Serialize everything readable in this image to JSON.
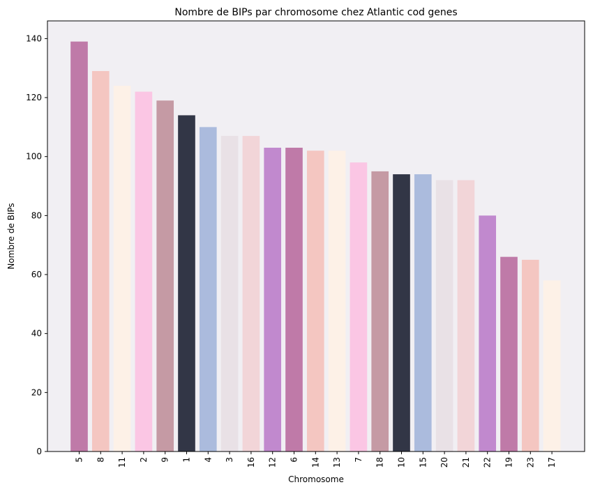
{
  "chart_data": {
    "type": "bar",
    "title": "Nombre de BIPs par chromosome chez Atlantic cod genes",
    "xlabel": "Chromosome",
    "ylabel": "Nombre de BIPs",
    "categories": [
      "5",
      "8",
      "11",
      "2",
      "9",
      "1",
      "4",
      "3",
      "16",
      "12",
      "6",
      "14",
      "13",
      "7",
      "18",
      "10",
      "15",
      "20",
      "21",
      "22",
      "19",
      "23",
      "17"
    ],
    "values": [
      139,
      129,
      124,
      122,
      119,
      114,
      110,
      107,
      107,
      103,
      103,
      102,
      102,
      98,
      95,
      94,
      94,
      92,
      92,
      80,
      66,
      65,
      58
    ],
    "colors": [
      "#bf7aa8",
      "#f4c6c1",
      "#fdf1e7",
      "#fbc6e4",
      "#c59aa4",
      "#323646",
      "#abbbdd",
      "#e9e1e6",
      "#f2d5d8",
      "#c189ce"
    ],
    "yticks": [
      0,
      20,
      40,
      60,
      80,
      100,
      120,
      140
    ],
    "ylim": [
      0,
      146
    ],
    "grid": false,
    "legend": false
  }
}
